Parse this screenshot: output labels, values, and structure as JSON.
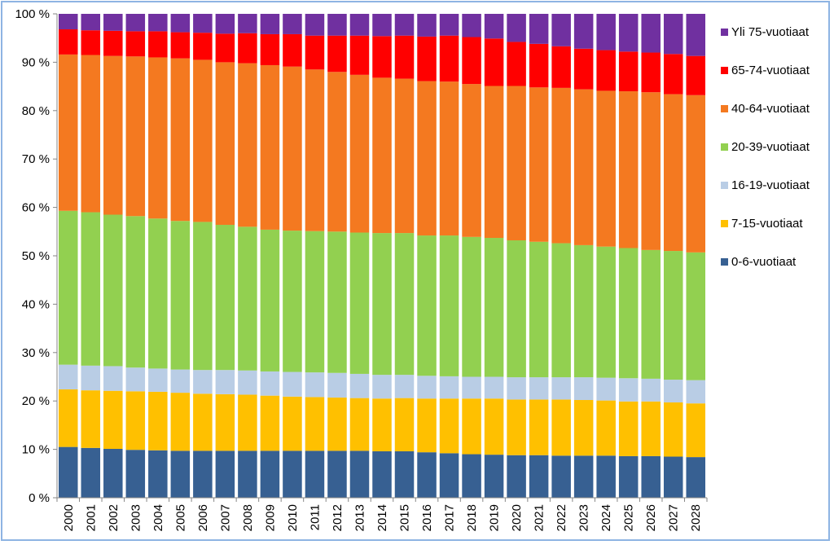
{
  "chart_data": {
    "type": "bar",
    "stacked": true,
    "normalized": true,
    "title": "",
    "xlabel": "",
    "ylabel": "",
    "ylim": [
      0,
      100
    ],
    "yticks": [
      "0 %",
      "10 %",
      "20 %",
      "30 %",
      "40 %",
      "50 %",
      "60 %",
      "70 %",
      "80 %",
      "90 %",
      "100 %"
    ],
    "legend_position": "right",
    "categories": [
      "2000",
      "2001",
      "2002",
      "2003",
      "2004",
      "2005",
      "2006",
      "2007",
      "2008",
      "2009",
      "2010",
      "2011",
      "2012",
      "2013",
      "2014",
      "2015",
      "2016",
      "2017",
      "2018",
      "2019",
      "2020",
      "2021",
      "2022",
      "2023",
      "2024",
      "2025",
      "2026",
      "2027",
      "2028"
    ],
    "series": [
      {
        "name": "0-6-vuotiaat",
        "color": "#376092",
        "values": [
          10.5,
          10.3,
          10.1,
          9.9,
          9.8,
          9.7,
          9.7,
          9.7,
          9.7,
          9.7,
          9.7,
          9.7,
          9.7,
          9.7,
          9.6,
          9.6,
          9.4,
          9.2,
          9.0,
          8.9,
          8.8,
          8.8,
          8.7,
          8.7,
          8.7,
          8.6,
          8.6,
          8.5,
          8.4
        ]
      },
      {
        "name": "7-15-vuotiaat",
        "color": "#ffc000",
        "values": [
          11.9,
          11.9,
          12.0,
          12.1,
          12.1,
          12.0,
          11.8,
          11.7,
          11.6,
          11.4,
          11.2,
          11.1,
          11.0,
          10.9,
          10.9,
          11.0,
          11.1,
          11.3,
          11.5,
          11.6,
          11.5,
          11.5,
          11.6,
          11.5,
          11.4,
          11.3,
          11.3,
          11.2,
          11.1
        ]
      },
      {
        "name": "16-19-vuotiaat",
        "color": "#b9cde5",
        "values": [
          5.1,
          5.1,
          5.1,
          4.9,
          4.8,
          4.8,
          4.9,
          5.0,
          5.0,
          5.0,
          5.1,
          5.1,
          5.1,
          5.0,
          4.9,
          4.8,
          4.7,
          4.6,
          4.5,
          4.5,
          4.6,
          4.6,
          4.6,
          4.7,
          4.7,
          4.8,
          4.7,
          4.7,
          4.8
        ]
      },
      {
        "name": "20-39-vuotiaat",
        "color": "#92d050",
        "values": [
          31.8,
          31.7,
          31.3,
          31.3,
          31.0,
          30.7,
          30.6,
          30.0,
          29.7,
          29.3,
          29.2,
          29.2,
          29.2,
          29.2,
          29.3,
          29.3,
          29.0,
          29.1,
          28.9,
          28.7,
          28.3,
          28.0,
          27.7,
          27.3,
          27.1,
          26.9,
          26.6,
          26.6,
          26.4
        ]
      },
      {
        "name": "40-64-vuotiaat",
        "color": "#f47920",
        "values": [
          32.3,
          32.5,
          32.8,
          33.0,
          33.3,
          33.6,
          33.5,
          33.6,
          33.8,
          34.0,
          33.9,
          33.4,
          33.0,
          32.6,
          32.1,
          31.9,
          31.9,
          31.8,
          31.6,
          31.4,
          31.9,
          31.9,
          32.1,
          32.2,
          32.2,
          32.4,
          32.6,
          32.4,
          32.5
        ]
      },
      {
        "name": "65-74-vuotiaat",
        "color": "#ff0000",
        "values": [
          5.2,
          5.1,
          5.2,
          5.2,
          5.4,
          5.4,
          5.6,
          5.9,
          6.2,
          6.4,
          6.7,
          7.0,
          7.5,
          8.1,
          8.6,
          8.9,
          9.2,
          9.5,
          9.7,
          9.8,
          9.1,
          9.0,
          8.6,
          8.4,
          8.4,
          8.2,
          8.2,
          8.3,
          8.1
        ]
      },
      {
        "name": "Yli 75-vuotiaat",
        "color": "#7030a0",
        "values": [
          3.2,
          3.4,
          3.5,
          3.6,
          3.6,
          3.8,
          3.9,
          4.1,
          4.0,
          4.2,
          4.2,
          4.5,
          4.5,
          4.5,
          4.6,
          4.5,
          4.7,
          4.5,
          4.8,
          5.1,
          5.8,
          6.2,
          6.7,
          7.2,
          7.5,
          7.8,
          8.0,
          8.3,
          8.7
        ]
      }
    ],
    "legend_order": [
      "Yli 75-vuotiaat",
      "65-74-vuotiaat",
      "40-64-vuotiaat",
      "20-39-vuotiaat",
      "16-19-vuotiaat",
      "7-15-vuotiaat",
      "0-6-vuotiaat"
    ],
    "axis_color": "#868686"
  }
}
